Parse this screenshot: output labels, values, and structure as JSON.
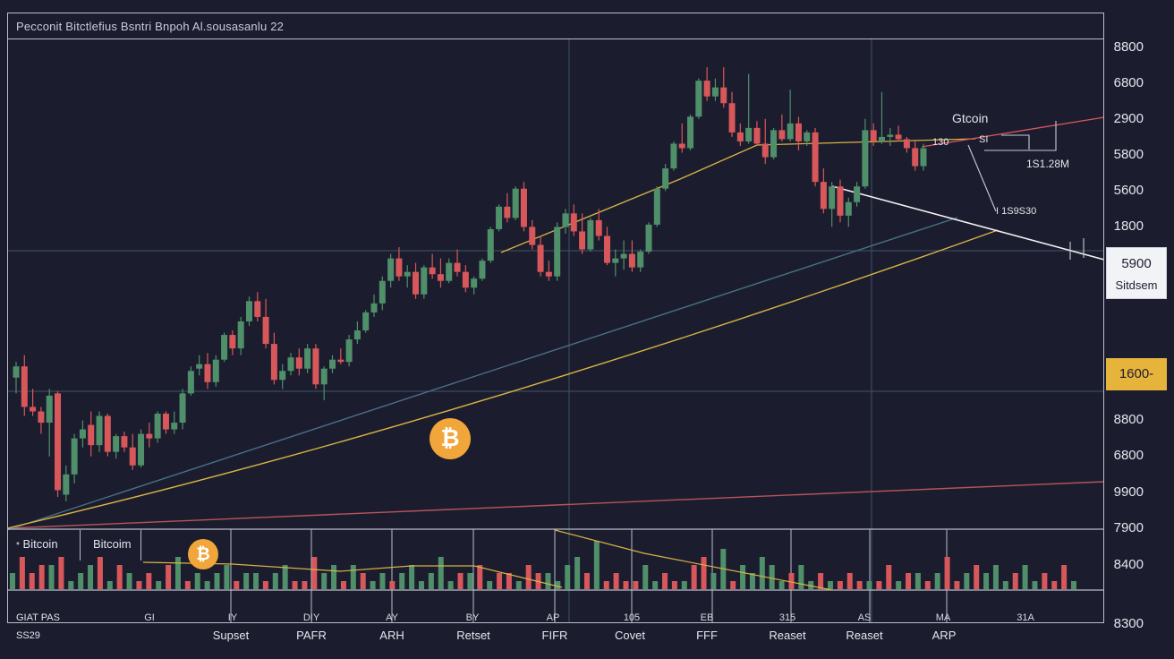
{
  "header": {
    "title": "Pecconit Bitctlefius Bsntri Bnpoh Al.sousasanlu 22"
  },
  "y_axis_labels": [
    "8800",
    "6800",
    "2900",
    "5800",
    "5600",
    "1800",
    "8800",
    "6800",
    "9900",
    "7900",
    "8400",
    "8300"
  ],
  "price_box": {
    "value": "5900",
    "label": "Sitdsem"
  },
  "yellow_tag": "1600-",
  "annotations": {
    "bitcoin_label": "Gtcoin",
    "small_value": "1S1.28M",
    "bracket_text": "SI",
    "scale_text": "I 1S9S30",
    "tick_text": "130"
  },
  "legend": {
    "item1": "Bitcoin",
    "item2": "Bitcoim"
  },
  "bottom_left": {
    "line1": "GIAT PAS",
    "line2": "SS29"
  },
  "date_ticks": [
    "GI",
    "IY",
    "DIY",
    "AY",
    "BY",
    "AP",
    "105",
    "EB",
    "315",
    "AS",
    "MA",
    "31A"
  ],
  "month_labels": [
    "Supset",
    "PAFR",
    "ARH",
    "Retset",
    "FIFR",
    "Covet",
    "FFF",
    "Reaset",
    "Reaset",
    "ARP"
  ],
  "icons": {
    "coin": "bitcoin-icon"
  },
  "colors": {
    "up": "#4f8f6a",
    "down": "#d8575a",
    "yellow_line": "#d9b345",
    "blue_line": "#4a6f86",
    "red_line": "#b7545a",
    "bg": "#1b1d2e"
  },
  "chart_data": {
    "type": "candlestick",
    "y_axis": {
      "type": "price"
    },
    "candles": [
      [
        6950,
        7020,
        6880,
        7000
      ],
      [
        7000,
        7050,
        6780,
        6820
      ],
      [
        6820,
        6900,
        6780,
        6800
      ],
      [
        6800,
        6820,
        6700,
        6750
      ],
      [
        6750,
        6900,
        6600,
        6870
      ],
      [
        6880,
        6890,
        6420,
        6450
      ],
      [
        6430,
        6560,
        6400,
        6520
      ],
      [
        6520,
        6700,
        6480,
        6680
      ],
      [
        6680,
        6760,
        6640,
        6720
      ],
      [
        6740,
        6800,
        6600,
        6650
      ],
      [
        6650,
        6800,
        6620,
        6780
      ],
      [
        6780,
        6790,
        6600,
        6620
      ],
      [
        6620,
        6700,
        6590,
        6690
      ],
      [
        6690,
        6710,
        6620,
        6640
      ],
      [
        6640,
        6700,
        6540,
        6560
      ],
      [
        6560,
        6720,
        6550,
        6700
      ],
      [
        6700,
        6750,
        6640,
        6680
      ],
      [
        6680,
        6800,
        6660,
        6790
      ],
      [
        6790,
        6800,
        6700,
        6720
      ],
      [
        6720,
        6800,
        6700,
        6750
      ],
      [
        6750,
        6900,
        6720,
        6880
      ],
      [
        6880,
        7000,
        6870,
        6980
      ],
      [
        6990,
        7050,
        6960,
        7010
      ],
      [
        7010,
        7060,
        6900,
        6930
      ],
      [
        6930,
        7050,
        6910,
        7030
      ],
      [
        7030,
        7150,
        7020,
        7140
      ],
      [
        7140,
        7160,
        7050,
        7080
      ],
      [
        7080,
        7220,
        7050,
        7200
      ],
      [
        7200,
        7310,
        7180,
        7290
      ],
      [
        7290,
        7330,
        7200,
        7220
      ],
      [
        7220,
        7300,
        7080,
        7100
      ],
      [
        7100,
        7150,
        6920,
        6940
      ],
      [
        6940,
        7010,
        6900,
        6980
      ],
      [
        6980,
        7060,
        6960,
        7040
      ],
      [
        7040,
        7080,
        6960,
        6990
      ],
      [
        6990,
        7100,
        6970,
        7080
      ],
      [
        7080,
        7100,
        6900,
        6920
      ],
      [
        6920,
        7000,
        6850,
        6990
      ],
      [
        6990,
        7050,
        6970,
        7030
      ],
      [
        7030,
        7080,
        7010,
        7020
      ],
      [
        7020,
        7140,
        7000,
        7120
      ],
      [
        7120,
        7200,
        7100,
        7160
      ],
      [
        7160,
        7250,
        7150,
        7240
      ],
      [
        7240,
        7320,
        7220,
        7280
      ],
      [
        7280,
        7400,
        7250,
        7380
      ],
      [
        7380,
        7500,
        7350,
        7480
      ],
      [
        7480,
        7530,
        7380,
        7400
      ],
      [
        7400,
        7450,
        7350,
        7420
      ],
      [
        7420,
        7460,
        7300,
        7320
      ],
      [
        7320,
        7450,
        7300,
        7440
      ],
      [
        7440,
        7500,
        7390,
        7410
      ],
      [
        7410,
        7480,
        7350,
        7380
      ],
      [
        7380,
        7480,
        7370,
        7460
      ],
      [
        7460,
        7520,
        7400,
        7420
      ],
      [
        7420,
        7450,
        7330,
        7350
      ],
      [
        7350,
        7400,
        7320,
        7390
      ],
      [
        7390,
        7480,
        7380,
        7470
      ],
      [
        7470,
        7620,
        7460,
        7610
      ],
      [
        7610,
        7720,
        7600,
        7710
      ],
      [
        7710,
        7770,
        7640,
        7660
      ],
      [
        7660,
        7800,
        7650,
        7790
      ],
      [
        7790,
        7820,
        7600,
        7620
      ],
      [
        7620,
        7650,
        7520,
        7540
      ],
      [
        7540,
        7580,
        7400,
        7420
      ],
      [
        7420,
        7470,
        7380,
        7400
      ],
      [
        7400,
        7640,
        7380,
        7620
      ],
      [
        7620,
        7700,
        7590,
        7680
      ],
      [
        7680,
        7720,
        7580,
        7600
      ],
      [
        7600,
        7680,
        7500,
        7520
      ],
      [
        7520,
        7660,
        7510,
        7650
      ],
      [
        7650,
        7700,
        7560,
        7580
      ],
      [
        7580,
        7620,
        7450,
        7460
      ],
      [
        7460,
        7520,
        7400,
        7480
      ],
      [
        7480,
        7560,
        7430,
        7500
      ],
      [
        7500,
        7560,
        7420,
        7440
      ],
      [
        7440,
        7520,
        7420,
        7510
      ],
      [
        7510,
        7640,
        7500,
        7630
      ],
      [
        7630,
        7800,
        7620,
        7790
      ],
      [
        7790,
        7900,
        7780,
        7880
      ],
      [
        7880,
        8000,
        7870,
        7990
      ],
      [
        7990,
        8080,
        7950,
        7970
      ],
      [
        7970,
        8120,
        7960,
        8110
      ],
      [
        8110,
        8280,
        8100,
        8270
      ],
      [
        8270,
        8330,
        8180,
        8200
      ],
      [
        8200,
        8280,
        8180,
        8240
      ],
      [
        8240,
        8330,
        8150,
        8170
      ],
      [
        8170,
        8220,
        8020,
        8040
      ],
      [
        8040,
        8080,
        7980,
        8000
      ],
      [
        8000,
        8300,
        7990,
        8060
      ],
      [
        8060,
        8090,
        7980,
        7990
      ],
      [
        7990,
        8100,
        7900,
        7930
      ],
      [
        7930,
        8060,
        7920,
        8050
      ],
      [
        8050,
        8120,
        8000,
        8010
      ],
      [
        8010,
        8230,
        8000,
        8080
      ],
      [
        8080,
        8110,
        7960,
        8000
      ],
      [
        8000,
        8050,
        7980,
        8040
      ],
      [
        8040,
        8060,
        7800,
        7820
      ],
      [
        7820,
        7880,
        7680,
        7700
      ],
      [
        7700,
        7820,
        7620,
        7800
      ],
      [
        7800,
        7830,
        7640,
        7670
      ],
      [
        7670,
        7750,
        7620,
        7730
      ],
      [
        7730,
        7820,
        7710,
        7800
      ],
      [
        7800,
        8100,
        7790,
        8050
      ],
      [
        8050,
        8080,
        7980,
        8000
      ],
      [
        8000,
        8220,
        7990,
        8020
      ],
      [
        8020,
        8060,
        7980,
        8030
      ],
      [
        8030,
        8070,
        8000,
        8010
      ],
      [
        8010,
        8020,
        7950,
        7970
      ],
      [
        7970,
        8000,
        7870,
        7890
      ],
      [
        7890,
        7990,
        7870,
        7970
      ]
    ],
    "volume": [
      2,
      4,
      2,
      3,
      3,
      4,
      1,
      2,
      3,
      4,
      1,
      3,
      2,
      1,
      2,
      1,
      3,
      4,
      1,
      2,
      1,
      2,
      3,
      1,
      2,
      2,
      1,
      2,
      3,
      1,
      1,
      4,
      2,
      3,
      1,
      3,
      2,
      1,
      2,
      1,
      2,
      3,
      1,
      2,
      4,
      1,
      2,
      2,
      3,
      1,
      2,
      2,
      1,
      3,
      2,
      2,
      1,
      3,
      4,
      2,
      6,
      1,
      2,
      1,
      1,
      3,
      1,
      2,
      1,
      1,
      3,
      4,
      2,
      5,
      1,
      3,
      2,
      4,
      3,
      1,
      2,
      3,
      1,
      2,
      1,
      1,
      2,
      1,
      1,
      1,
      3,
      1,
      2,
      2,
      1,
      2,
      4,
      1,
      2,
      3,
      2,
      3,
      1,
      2,
      3,
      1,
      2,
      1,
      3,
      1
    ]
  }
}
